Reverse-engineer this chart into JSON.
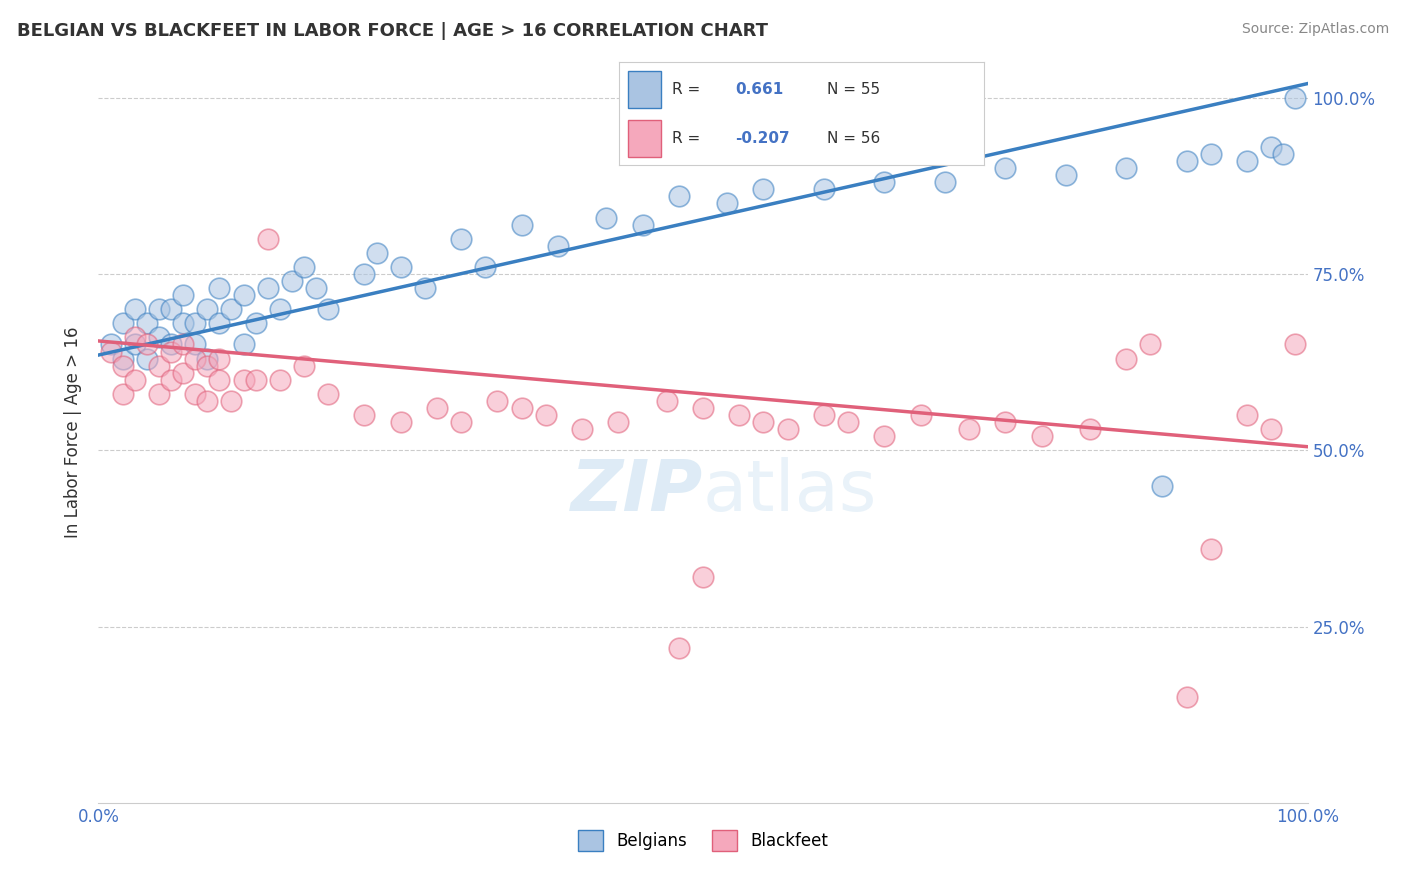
{
  "title": "BELGIAN VS BLACKFEET IN LABOR FORCE | AGE > 16 CORRELATION CHART",
  "source": "Source: ZipAtlas.com",
  "ylabel": "In Labor Force | Age > 16",
  "xmin": 0.0,
  "xmax": 1.0,
  "ymin": 0.0,
  "ymax": 1.05,
  "belgian_color": "#aac4e2",
  "blackfeet_color": "#f5a8bc",
  "belgian_line_color": "#3a7fc1",
  "blackfeet_line_color": "#e0607a",
  "watermark": "ZIPatlas",
  "belgian_scatter_x": [
    0.01,
    0.02,
    0.02,
    0.03,
    0.03,
    0.04,
    0.04,
    0.05,
    0.05,
    0.06,
    0.06,
    0.07,
    0.07,
    0.08,
    0.08,
    0.09,
    0.09,
    0.1,
    0.1,
    0.11,
    0.12,
    0.12,
    0.13,
    0.14,
    0.15,
    0.16,
    0.17,
    0.18,
    0.19,
    0.22,
    0.23,
    0.25,
    0.27,
    0.3,
    0.32,
    0.35,
    0.38,
    0.42,
    0.45,
    0.48,
    0.52,
    0.55,
    0.6,
    0.65,
    0.7,
    0.75,
    0.8,
    0.85,
    0.88,
    0.9,
    0.92,
    0.95,
    0.97,
    0.98,
    0.99
  ],
  "belgian_scatter_y": [
    0.65,
    0.68,
    0.63,
    0.7,
    0.65,
    0.68,
    0.63,
    0.66,
    0.7,
    0.65,
    0.7,
    0.68,
    0.72,
    0.65,
    0.68,
    0.7,
    0.63,
    0.68,
    0.73,
    0.7,
    0.72,
    0.65,
    0.68,
    0.73,
    0.7,
    0.74,
    0.76,
    0.73,
    0.7,
    0.75,
    0.78,
    0.76,
    0.73,
    0.8,
    0.76,
    0.82,
    0.79,
    0.83,
    0.82,
    0.86,
    0.85,
    0.87,
    0.87,
    0.88,
    0.88,
    0.9,
    0.89,
    0.9,
    0.45,
    0.91,
    0.92,
    0.91,
    0.93,
    0.92,
    1.0
  ],
  "blackfeet_scatter_x": [
    0.01,
    0.02,
    0.02,
    0.03,
    0.03,
    0.04,
    0.05,
    0.05,
    0.06,
    0.06,
    0.07,
    0.07,
    0.08,
    0.08,
    0.09,
    0.09,
    0.1,
    0.1,
    0.11,
    0.12,
    0.13,
    0.14,
    0.15,
    0.17,
    0.19,
    0.22,
    0.25,
    0.28,
    0.3,
    0.33,
    0.35,
    0.37,
    0.4,
    0.43,
    0.47,
    0.5,
    0.53,
    0.55,
    0.57,
    0.6,
    0.62,
    0.65,
    0.68,
    0.72,
    0.75,
    0.78,
    0.82,
    0.85,
    0.87,
    0.9,
    0.92,
    0.95,
    0.97,
    0.99,
    0.5,
    0.48
  ],
  "blackfeet_scatter_y": [
    0.64,
    0.62,
    0.58,
    0.6,
    0.66,
    0.65,
    0.62,
    0.58,
    0.64,
    0.6,
    0.65,
    0.61,
    0.63,
    0.58,
    0.62,
    0.57,
    0.63,
    0.6,
    0.57,
    0.6,
    0.6,
    0.8,
    0.6,
    0.62,
    0.58,
    0.55,
    0.54,
    0.56,
    0.54,
    0.57,
    0.56,
    0.55,
    0.53,
    0.54,
    0.57,
    0.56,
    0.55,
    0.54,
    0.53,
    0.55,
    0.54,
    0.52,
    0.55,
    0.53,
    0.54,
    0.52,
    0.53,
    0.63,
    0.65,
    0.15,
    0.36,
    0.55,
    0.53,
    0.65,
    0.32,
    0.22
  ]
}
